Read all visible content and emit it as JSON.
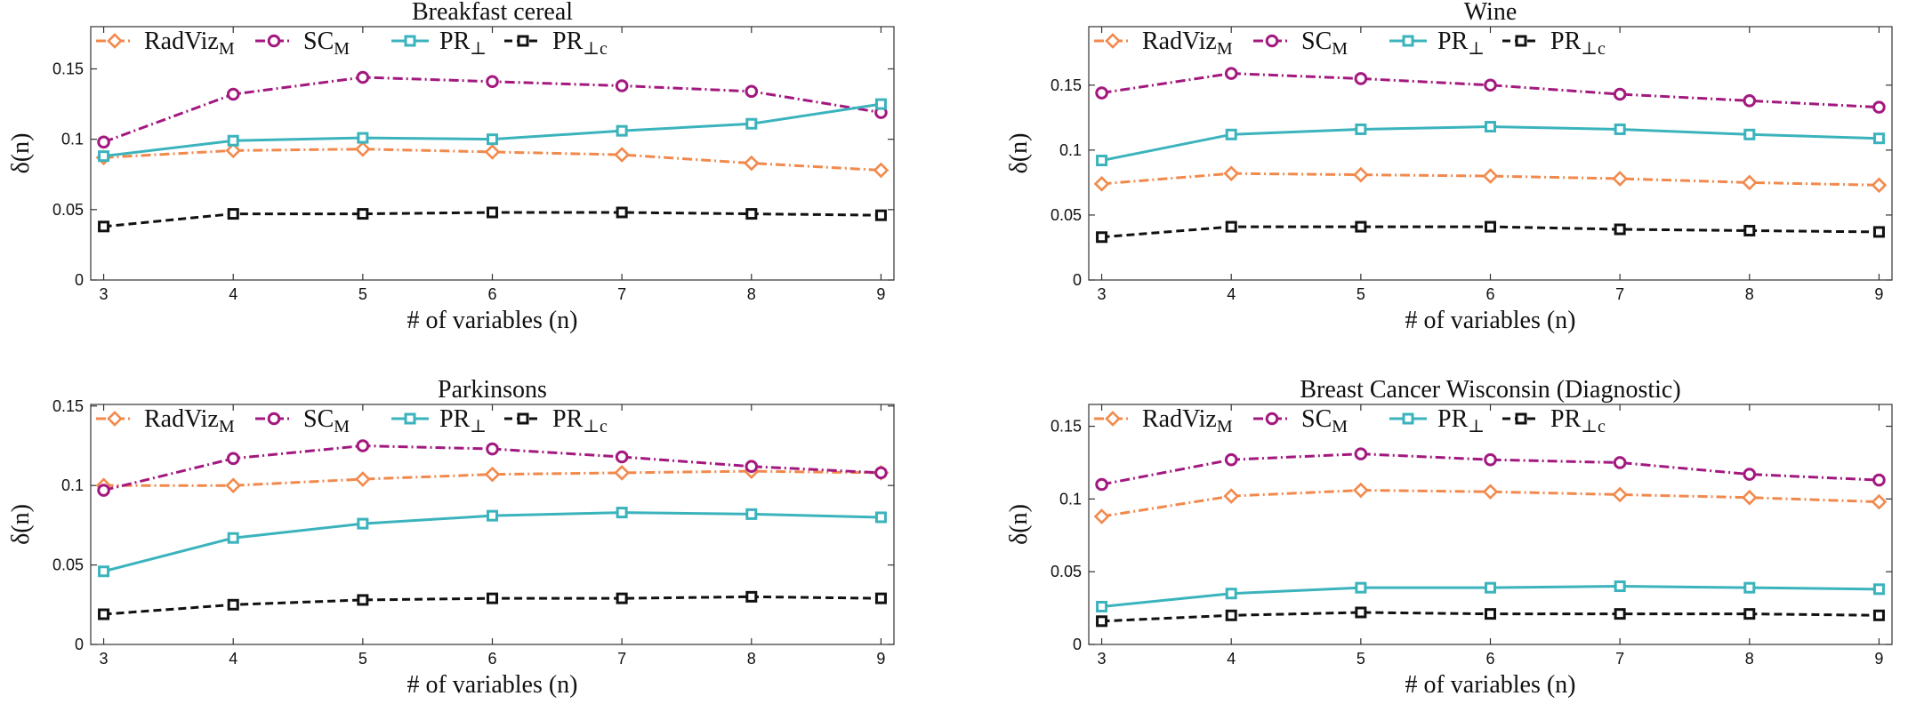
{
  "legend": [
    {
      "key": "radviz",
      "name": "RadViz",
      "sub": "M",
      "suffix": "",
      "color": "#f2894c",
      "marker": "diamond",
      "dash": "dashdot"
    },
    {
      "key": "sc",
      "name": "SC",
      "sub": "M",
      "suffix": "",
      "color": "#a3187f",
      "marker": "circle",
      "dash": "dashdot"
    },
    {
      "key": "pr",
      "name": "PR",
      "sub": "",
      "suffix": "⊥",
      "color": "#3bb3bd",
      "marker": "square",
      "dash": "solid"
    },
    {
      "key": "prc",
      "name": "PR",
      "sub": "",
      "suffix": "⊥c",
      "color": "#111111",
      "marker": "square",
      "dash": "dashed"
    }
  ],
  "chart_data": [
    {
      "type": "line",
      "title": "Breakfast cereal",
      "xlabel": "# of variables (n)",
      "ylabel": "δ(n)",
      "x": [
        3,
        4,
        5,
        6,
        7,
        8,
        9
      ],
      "xlim": [
        2.9,
        9.1
      ],
      "ylim": [
        0,
        0.18
      ],
      "yticks": [
        0,
        0.05,
        0.1,
        0.15
      ],
      "ytick_labels": [
        "0",
        "0.05",
        "0.1",
        "0.15"
      ],
      "series": [
        {
          "name": "RadVizM",
          "values": [
            0.087,
            0.092,
            0.093,
            0.091,
            0.089,
            0.083,
            0.078
          ]
        },
        {
          "name": "SCM",
          "values": [
            0.098,
            0.132,
            0.144,
            0.141,
            0.138,
            0.134,
            0.119
          ]
        },
        {
          "name": "PR⊥",
          "values": [
            0.088,
            0.099,
            0.101,
            0.1,
            0.106,
            0.111,
            0.125
          ]
        },
        {
          "name": "PR⊥c",
          "values": [
            0.038,
            0.047,
            0.047,
            0.048,
            0.048,
            0.047,
            0.046
          ]
        }
      ]
    },
    {
      "type": "line",
      "title": "Wine",
      "xlabel": "# of variables (n)",
      "ylabel": "δ(n)",
      "x": [
        3,
        4,
        5,
        6,
        7,
        8,
        9
      ],
      "xlim": [
        2.9,
        9.1
      ],
      "ylim": [
        0,
        0.195
      ],
      "yticks": [
        0,
        0.05,
        0.1,
        0.15
      ],
      "ytick_labels": [
        "0",
        "0.05",
        "0.1",
        "0.15"
      ],
      "series": [
        {
          "name": "RadVizM",
          "values": [
            0.074,
            0.082,
            0.081,
            0.08,
            0.078,
            0.075,
            0.073
          ]
        },
        {
          "name": "SCM",
          "values": [
            0.144,
            0.159,
            0.155,
            0.15,
            0.143,
            0.138,
            0.133
          ]
        },
        {
          "name": "PR⊥",
          "values": [
            0.092,
            0.112,
            0.116,
            0.118,
            0.116,
            0.112,
            0.109
          ]
        },
        {
          "name": "PR⊥c",
          "values": [
            0.033,
            0.041,
            0.041,
            0.041,
            0.039,
            0.038,
            0.037
          ]
        }
      ]
    },
    {
      "type": "line",
      "title": "Parkinsons",
      "xlabel": "# of variables (n)",
      "ylabel": "δ(n)",
      "x": [
        3,
        4,
        5,
        6,
        7,
        8,
        9
      ],
      "xlim": [
        2.9,
        9.1
      ],
      "ylim": [
        0,
        0.151
      ],
      "yticks": [
        0,
        0.05,
        0.1,
        0.15
      ],
      "ytick_labels": [
        "0",
        "0.05",
        "0.1",
        "0.15"
      ],
      "series": [
        {
          "name": "RadVizM",
          "values": [
            0.1,
            0.1,
            0.104,
            0.107,
            0.108,
            0.109,
            0.108
          ]
        },
        {
          "name": "SCM",
          "values": [
            0.097,
            0.117,
            0.125,
            0.123,
            0.118,
            0.112,
            0.108
          ]
        },
        {
          "name": "PR⊥",
          "values": [
            0.046,
            0.067,
            0.076,
            0.081,
            0.083,
            0.082,
            0.08
          ]
        },
        {
          "name": "PR⊥c",
          "values": [
            0.019,
            0.025,
            0.028,
            0.029,
            0.029,
            0.03,
            0.029
          ]
        }
      ]
    },
    {
      "type": "line",
      "title": "Breast Cancer Wisconsin (Diagnostic)",
      "xlabel": "# of variables (n)",
      "ylabel": "δ(n)",
      "x": [
        3,
        4,
        5,
        6,
        7,
        8,
        9
      ],
      "xlim": [
        2.9,
        9.1
      ],
      "ylim": [
        0,
        0.165
      ],
      "yticks": [
        0,
        0.05,
        0.1,
        0.15
      ],
      "ytick_labels": [
        "0",
        "0.05",
        "0.1",
        "0.15"
      ],
      "series": [
        {
          "name": "RadVizM",
          "values": [
            0.088,
            0.102,
            0.106,
            0.105,
            0.103,
            0.101,
            0.098
          ]
        },
        {
          "name": "SCM",
          "values": [
            0.11,
            0.127,
            0.131,
            0.127,
            0.125,
            0.117,
            0.113
          ]
        },
        {
          "name": "PR⊥",
          "values": [
            0.026,
            0.035,
            0.039,
            0.039,
            0.04,
            0.039,
            0.038
          ]
        },
        {
          "name": "PR⊥c",
          "values": [
            0.016,
            0.02,
            0.022,
            0.021,
            0.021,
            0.021,
            0.02
          ]
        }
      ]
    }
  ]
}
